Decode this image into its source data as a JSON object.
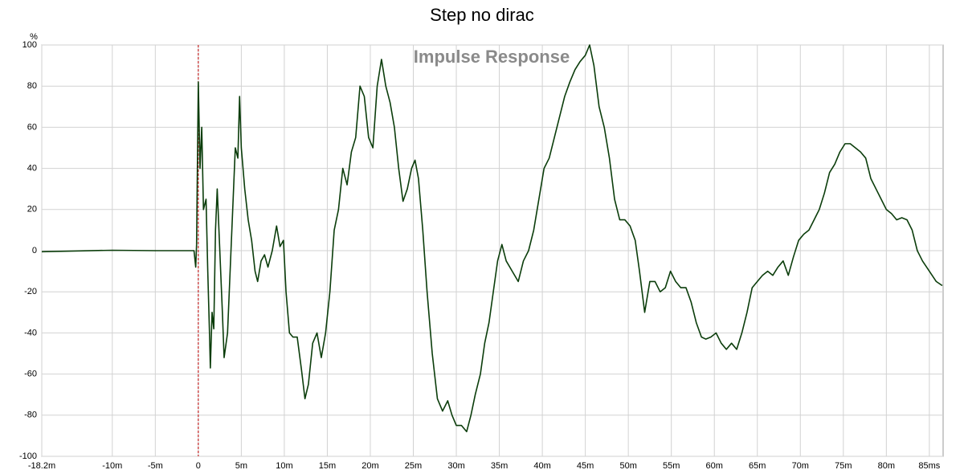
{
  "chart_data": {
    "type": "line",
    "title": "Step no dirac",
    "subtitle": "Impulse Response",
    "y_unit": "%",
    "xlim": [
      -18.2,
      86.6
    ],
    "ylim": [
      -100,
      100
    ],
    "xticks": [
      {
        "value": -18.2,
        "label": "-18.2m"
      },
      {
        "value": -10,
        "label": "-10m"
      },
      {
        "value": -5,
        "label": "-5m"
      },
      0,
      {
        "value": 5,
        "label": "5m"
      },
      {
        "value": 10,
        "label": "10m"
      },
      {
        "value": 15,
        "label": "15m"
      },
      {
        "value": 20,
        "label": "20m"
      },
      {
        "value": 25,
        "label": "25m"
      },
      {
        "value": 30,
        "label": "30m"
      },
      {
        "value": 35,
        "label": "35m"
      },
      {
        "value": 40,
        "label": "40m"
      },
      {
        "value": 45,
        "label": "45m"
      },
      {
        "value": 50,
        "label": "50m"
      },
      {
        "value": 55,
        "label": "55m"
      },
      {
        "value": 60,
        "label": "60m"
      },
      {
        "value": 65,
        "label": "65m"
      },
      {
        "value": 70,
        "label": "70m"
      },
      {
        "value": 75,
        "label": "75m"
      },
      {
        "value": 80,
        "label": "80m"
      },
      {
        "value": 85,
        "label": "85ms"
      }
    ],
    "yticks": [
      100,
      80,
      60,
      40,
      20,
      0,
      -20,
      -40,
      -60,
      -80,
      -100
    ],
    "grid": true,
    "marker_x": 0,
    "marker_color": "#c00000",
    "x": [
      -18.2,
      -10,
      -5,
      -0.5,
      -0.3,
      -0.2,
      0,
      0.2,
      0.4,
      0.6,
      0.9,
      1.1,
      1.3,
      1.4,
      1.6,
      1.8,
      2.0,
      2.2,
      2.5,
      2.8,
      3.0,
      3.4,
      3.8,
      4.0,
      4.3,
      4.6,
      4.8,
      5.0,
      5.4,
      5.8,
      6.2,
      6.6,
      6.9,
      7.3,
      7.7,
      8.1,
      8.6,
      9.1,
      9.5,
      9.9,
      10.2,
      10.6,
      11.0,
      11.5,
      12.0,
      12.4,
      12.8,
      13.3,
      13.8,
      14.3,
      14.8,
      15.3,
      15.8,
      16.3,
      16.8,
      17.3,
      17.8,
      18.3,
      18.8,
      19.3,
      19.8,
      20.3,
      20.8,
      21.3,
      21.8,
      22.3,
      22.8,
      23.3,
      23.8,
      24.3,
      24.8,
      25.2,
      25.6,
      26.1,
      26.6,
      27.2,
      27.8,
      28.4,
      29.0,
      29.5,
      30.0,
      30.6,
      31.2,
      31.7,
      32.2,
      32.8,
      33.3,
      33.8,
      34.3,
      34.8,
      35.3,
      35.8,
      36.5,
      37.2,
      37.8,
      38.4,
      39.0,
      39.6,
      40.2,
      40.8,
      41.4,
      42.0,
      42.6,
      43.2,
      43.8,
      44.4,
      45.0,
      45.5,
      46.0,
      46.6,
      47.2,
      47.8,
      48.4,
      49.0,
      49.6,
      50.2,
      50.8,
      51.3,
      51.9,
      52.5,
      53.1,
      53.7,
      54.3,
      54.9,
      55.5,
      56.1,
      56.7,
      57.3,
      57.9,
      58.5,
      59.0,
      59.6,
      60.2,
      60.8,
      61.4,
      62.0,
      62.6,
      63.2,
      63.8,
      64.4,
      65.0,
      65.6,
      66.2,
      66.8,
      67.4,
      68.0,
      68.6,
      69.2,
      69.8,
      70.4,
      71.0,
      71.6,
      72.2,
      72.8,
      73.4,
      74.0,
      74.6,
      75.2,
      75.8,
      76.4,
      77.0,
      77.6,
      78.2,
      78.8,
      79.4,
      80.0,
      80.6,
      81.2,
      81.8,
      82.4,
      83.0,
      83.6,
      84.2,
      85.0,
      85.8,
      86.5
    ],
    "series": [
      {
        "name": "Step no dirac",
        "color": "#0b3d0b",
        "values": [
          -0.5,
          0.2,
          0,
          0,
          -8,
          3,
          82,
          40,
          60,
          20,
          25,
          -10,
          -40,
          -57,
          -30,
          -38,
          10,
          30,
          0,
          -30,
          -52,
          -40,
          0,
          20,
          50,
          45,
          75,
          50,
          30,
          15,
          5,
          -10,
          -15,
          -5,
          -2,
          -8,
          0,
          12,
          2,
          5,
          -20,
          -40,
          -42,
          -42,
          -58,
          -72,
          -65,
          -45,
          -40,
          -52,
          -40,
          -20,
          10,
          20,
          40,
          32,
          48,
          55,
          80,
          75,
          55,
          50,
          80,
          93,
          80,
          72,
          60,
          40,
          24,
          30,
          40,
          44,
          35,
          10,
          -20,
          -50,
          -72,
          -78,
          -73,
          -80,
          -85,
          -85,
          -88,
          -80,
          -70,
          -60,
          -45,
          -35,
          -20,
          -5,
          3,
          -5,
          -10,
          -15,
          -5,
          0,
          10,
          25,
          40,
          45,
          55,
          65,
          75,
          82,
          88,
          92,
          95,
          100,
          90,
          70,
          60,
          45,
          25,
          15,
          15,
          12,
          5,
          -10,
          -30,
          -15,
          -15,
          -20,
          -18,
          -10,
          -15,
          -18,
          -18,
          -25,
          -35,
          -42,
          -43,
          -42,
          -40,
          -45,
          -48,
          -45,
          -48,
          -40,
          -30,
          -18,
          -15,
          -12,
          -10,
          -12,
          -8,
          -5,
          -12,
          -3,
          5,
          8,
          10,
          15,
          20,
          28,
          38,
          42,
          48,
          52,
          52,
          50,
          48,
          45,
          35,
          30,
          25,
          20,
          18,
          15,
          16,
          15,
          10,
          0,
          -5,
          -10,
          -15,
          -17
        ]
      }
    ]
  }
}
